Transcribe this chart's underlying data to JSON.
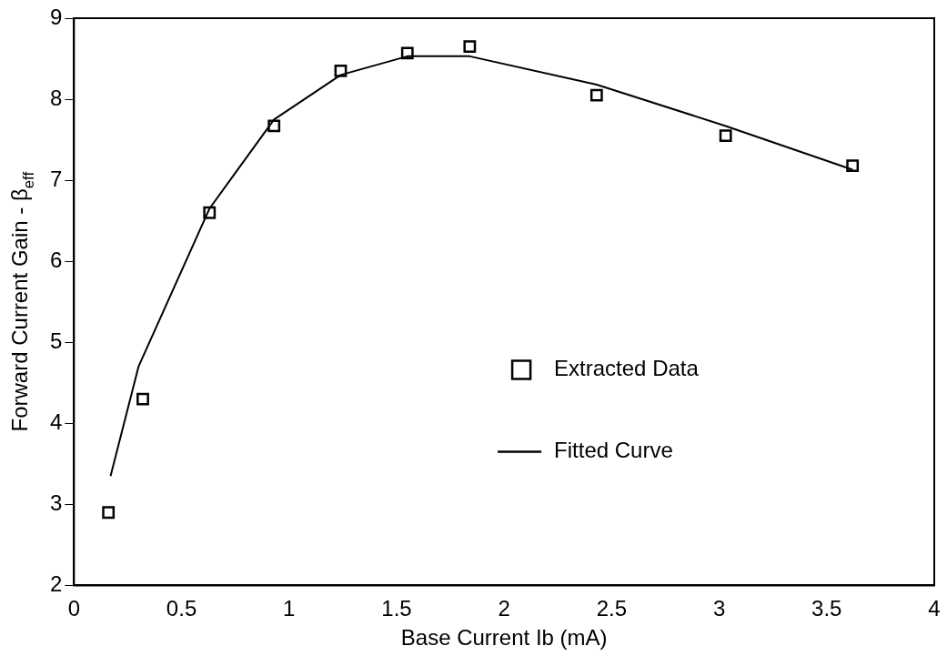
{
  "chart_data": {
    "type": "scatter",
    "xlabel": "Base Current Ib (mA)",
    "ylabel": "Forward Current Gain - β$_{eff}$",
    "xlim": [
      0,
      4
    ],
    "xticks": [
      0,
      0.5,
      1,
      1.5,
      2,
      2.5,
      3,
      3.5,
      4
    ],
    "ylim": [
      2,
      9
    ],
    "yticks": [
      2,
      3,
      4,
      5,
      6,
      7,
      8,
      9
    ],
    "grid": false,
    "legend": "bottom",
    "series": [
      {
        "name": "Extracted Data",
        "marker": "square",
        "color": "#000000",
        "x": [
          0.16,
          0.32,
          0.63,
          0.93,
          1.24,
          1.55,
          1.84,
          2.43,
          3.03,
          3.62
        ],
        "values": [
          2.9,
          4.3,
          6.6,
          7.67,
          8.35,
          8.57,
          8.65,
          8.05,
          7.55,
          7.18
        ]
      },
      {
        "name": "Fitted Curve",
        "type": "line",
        "marker": "none",
        "line_style": "solid",
        "color": "#000000",
        "x": [
          0.17,
          0.3,
          0.63,
          0.93,
          1.24,
          1.55,
          1.84,
          2.43,
          3.03,
          3.62
        ],
        "values": [
          3.35,
          4.7,
          6.65,
          7.75,
          8.3,
          8.53,
          8.53,
          8.18,
          7.67,
          7.13
        ]
      }
    ]
  }
}
